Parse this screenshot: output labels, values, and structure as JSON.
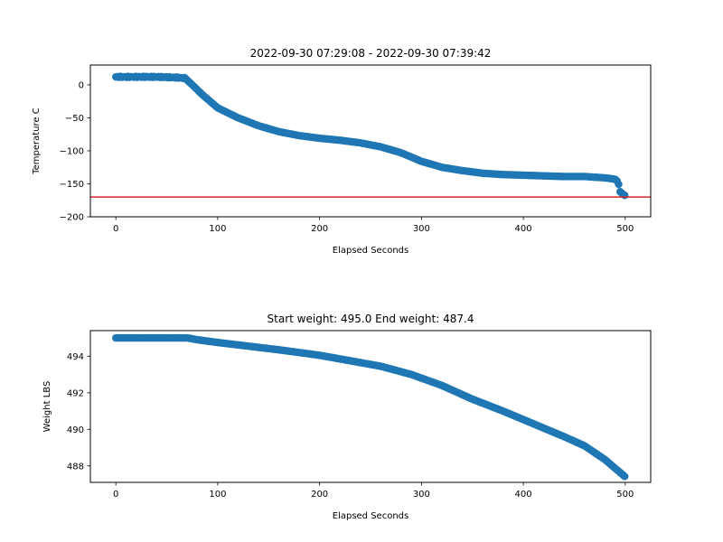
{
  "chart_data": [
    {
      "type": "scatter",
      "title": "2022-09-30 07:29:08 - 2022-09-30 07:39:42",
      "xlabel": "Elapsed Seconds",
      "ylabel": "Temperature C",
      "xlim": [
        -25,
        525
      ],
      "ylim": [
        -200,
        30
      ],
      "xticks": [
        0,
        100,
        200,
        300,
        400,
        500
      ],
      "yticks": [
        -200,
        -150,
        -100,
        -50,
        0
      ],
      "ytick_labels": [
        "−200",
        "−150",
        "−100",
        "−50",
        "0"
      ],
      "marker_color": "#1f77b4",
      "hline": {
        "y": -170,
        "color": "#d62728"
      },
      "key_points": [
        [
          0,
          12
        ],
        [
          20,
          12
        ],
        [
          40,
          12
        ],
        [
          60,
          11
        ],
        [
          68,
          10
        ],
        [
          75,
          0
        ],
        [
          85,
          -15
        ],
        [
          100,
          -35
        ],
        [
          120,
          -50
        ],
        [
          140,
          -62
        ],
        [
          160,
          -71
        ],
        [
          180,
          -77
        ],
        [
          200,
          -81
        ],
        [
          220,
          -84
        ],
        [
          240,
          -88
        ],
        [
          260,
          -94
        ],
        [
          280,
          -103
        ],
        [
          300,
          -116
        ],
        [
          320,
          -125
        ],
        [
          340,
          -130
        ],
        [
          360,
          -134
        ],
        [
          380,
          -136
        ],
        [
          400,
          -137
        ],
        [
          420,
          -138
        ],
        [
          440,
          -139
        ],
        [
          460,
          -139
        ],
        [
          480,
          -141
        ],
        [
          490,
          -143
        ],
        [
          493,
          -147
        ],
        [
          495,
          -162
        ],
        [
          498,
          -166
        ],
        [
          500,
          -168
        ]
      ]
    },
    {
      "type": "scatter",
      "title": "Start weight: 495.0 End weight: 487.4",
      "xlabel": "Elapsed Seconds",
      "ylabel": "Weight LBS",
      "xlim": [
        -25,
        525
      ],
      "ylim": [
        487.1,
        495.4
      ],
      "xticks": [
        0,
        100,
        200,
        300,
        400,
        500
      ],
      "yticks": [
        488,
        490,
        492,
        494
      ],
      "marker_color": "#1f77b4",
      "key_points": [
        [
          0,
          495.0
        ],
        [
          40,
          495.0
        ],
        [
          70,
          495.0
        ],
        [
          80,
          494.9
        ],
        [
          100,
          494.75
        ],
        [
          130,
          494.55
        ],
        [
          160,
          494.35
        ],
        [
          200,
          494.05
        ],
        [
          230,
          493.75
        ],
        [
          260,
          493.45
        ],
        [
          290,
          493.0
        ],
        [
          320,
          492.4
        ],
        [
          350,
          491.65
        ],
        [
          380,
          491.0
        ],
        [
          410,
          490.3
        ],
        [
          440,
          489.6
        ],
        [
          460,
          489.1
        ],
        [
          480,
          488.35
        ],
        [
          500,
          487.4
        ]
      ]
    }
  ]
}
